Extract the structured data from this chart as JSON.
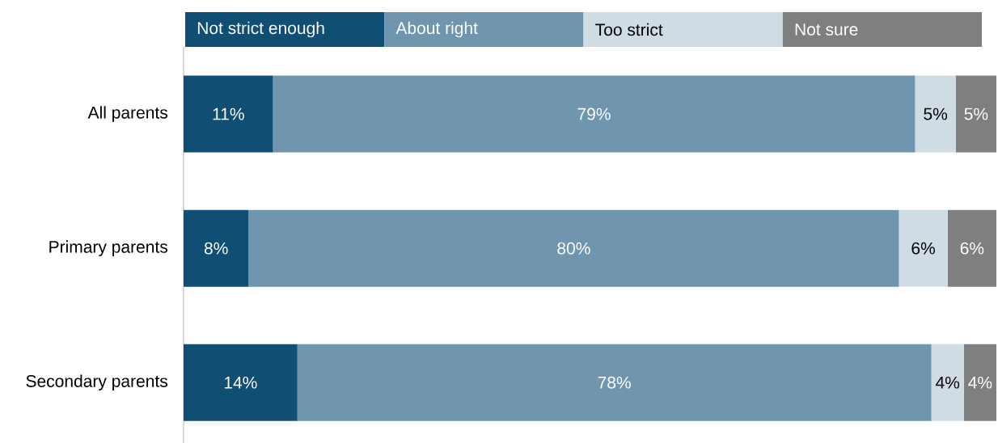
{
  "chart_data": {
    "type": "bar",
    "orientation": "horizontal",
    "stacked": true,
    "legend": "top",
    "tick_labels": "y",
    "xlim": [
      0,
      100
    ],
    "categories": [
      "All parents",
      "Primary parents",
      "Secondary parents"
    ],
    "series": [
      {
        "name": "Not strict enough",
        "color": "#114e74",
        "values": [
          11,
          8,
          14
        ],
        "value_labels": [
          "11%",
          "8%",
          "14%"
        ]
      },
      {
        "name": "About right",
        "color": "#7095ae",
        "values": [
          79,
          80,
          78
        ],
        "value_labels": [
          "79%",
          "80%",
          "78%"
        ]
      },
      {
        "name": "Too strict",
        "color": "#d0dce4",
        "values": [
          5,
          6,
          4
        ],
        "value_labels": [
          "5%",
          "6%",
          "4%"
        ]
      },
      {
        "name": "Not sure",
        "color": "#7f7f7f",
        "values": [
          5,
          6,
          4
        ],
        "value_labels": [
          "5%",
          "6%",
          "4%"
        ]
      }
    ]
  }
}
